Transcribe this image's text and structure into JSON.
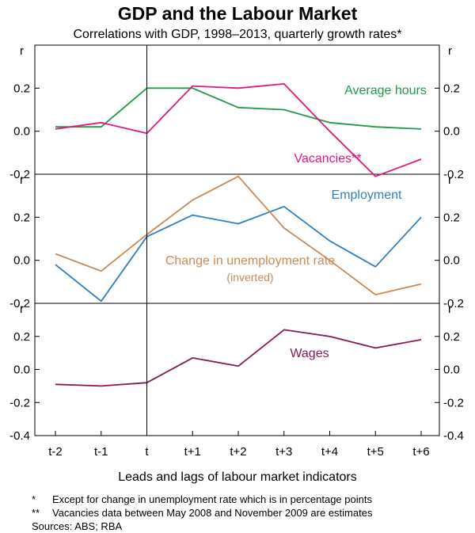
{
  "title": "GDP and the Labour Market",
  "subtitle": "Correlations with GDP, 1998–2013, quarterly growth rates*",
  "xlabel": "Leads and lags of labour market indicators",
  "notes": [
    {
      "mark": "*",
      "text": "Except for change in unemployment rate which is in percentage points"
    },
    {
      "mark": "**",
      "text": "Vacancies data between May 2008 and November 2009 are estimates"
    }
  ],
  "sources": "Sources: ABS; RBA",
  "chart_data": {
    "type": "line",
    "categories": [
      "t-2",
      "t-1",
      "t",
      "t+1",
      "t+2",
      "t+3",
      "t+4",
      "t+5",
      "t+6"
    ],
    "axis_unit_label": "r",
    "y_ticks": [
      "0.2",
      "0.0",
      "-0.2",
      "-0.4"
    ],
    "panels": [
      {
        "name": "top",
        "ylim": [
          -0.2,
          0.4
        ],
        "series": [
          {
            "name": "Average hours",
            "color": "#1f9a4a",
            "values": [
              0.02,
              0.02,
              0.2,
              0.2,
              0.11,
              0.1,
              0.04,
              0.02,
              0.01
            ]
          },
          {
            "name": "Vacancies**",
            "color": "#e4177e",
            "values": [
              0.01,
              0.04,
              -0.01,
              0.21,
              0.2,
              0.22,
              0.0,
              -0.21,
              -0.13
            ]
          }
        ]
      },
      {
        "name": "middle",
        "ylim": [
          -0.2,
          0.4
        ],
        "series": [
          {
            "name": "Employment",
            "color": "#2f7fc4",
            "values": [
              -0.02,
              -0.19,
              0.11,
              0.21,
              0.17,
              0.25,
              0.09,
              -0.03,
              0.2
            ]
          },
          {
            "name": "Change in unemployment rate",
            "sublabel": "(inverted)",
            "color": "#c98a57",
            "values": [
              0.03,
              -0.05,
              0.12,
              0.28,
              0.39,
              0.15,
              0.0,
              -0.16,
              -0.11
            ]
          }
        ]
      },
      {
        "name": "bottom",
        "ylim": [
          -0.4,
          0.4
        ],
        "series": [
          {
            "name": "Wages",
            "color": "#8a1a52",
            "values": [
              -0.09,
              -0.1,
              -0.08,
              0.07,
              0.02,
              0.24,
              0.2,
              0.13,
              0.18
            ]
          }
        ]
      }
    ]
  }
}
